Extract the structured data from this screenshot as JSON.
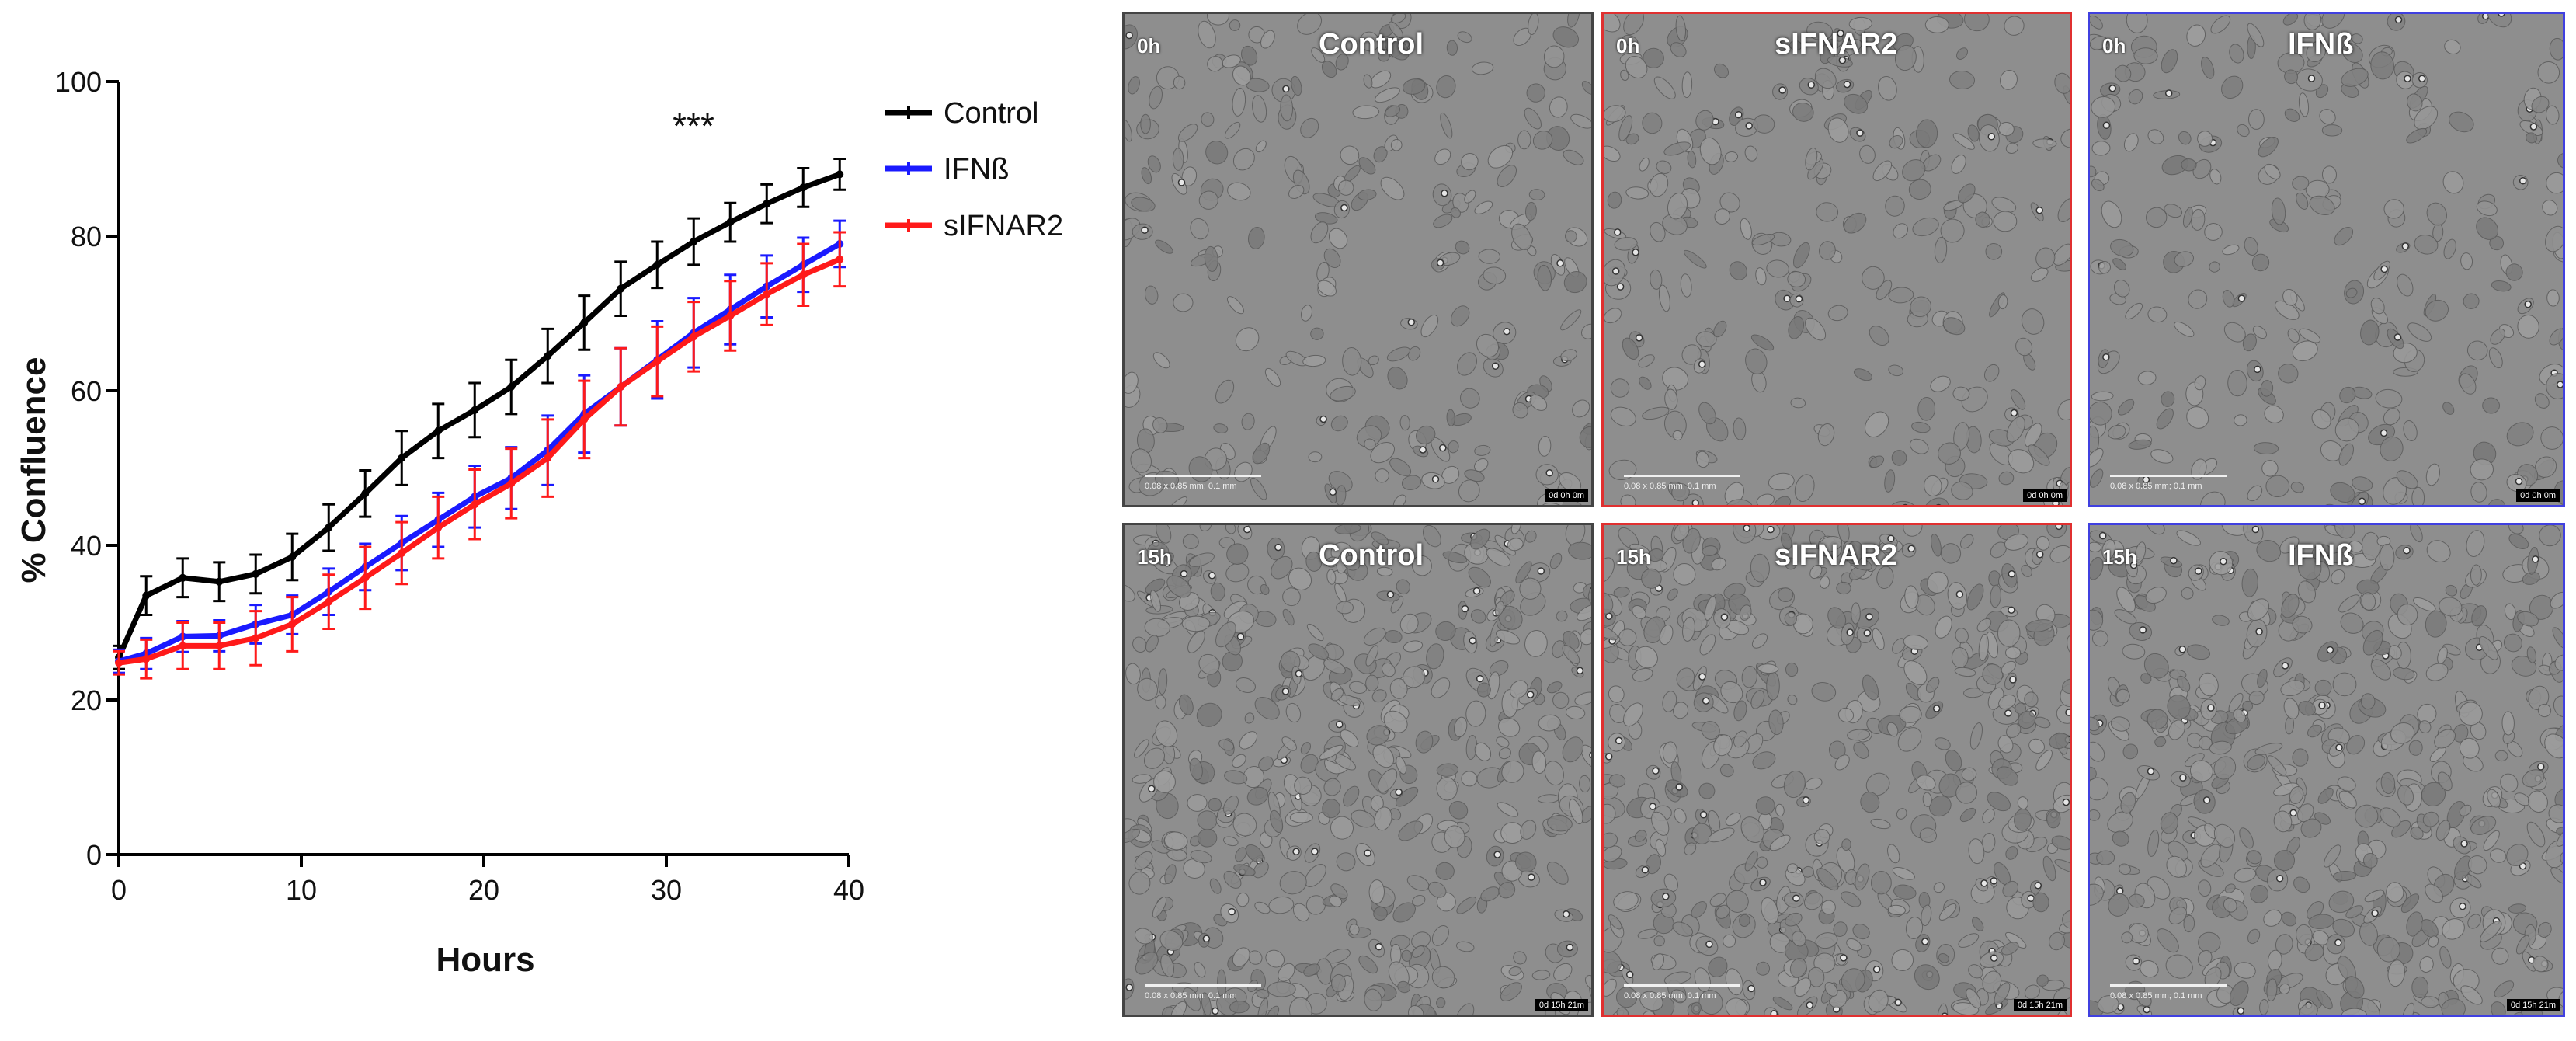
{
  "chart_data": {
    "type": "line",
    "ylabel": "% Confluence",
    "xlabel": "Hours",
    "xlim": [
      0,
      40
    ],
    "ylim": [
      0,
      100
    ],
    "xticks": [
      0,
      10,
      20,
      30,
      40
    ],
    "yticks": [
      0,
      20,
      40,
      60,
      80,
      100
    ],
    "grid": false,
    "legend_position": "top-right",
    "annotation": "***",
    "x": [
      0,
      1.5,
      3.5,
      5.5,
      7.5,
      9.5,
      11.5,
      13.5,
      15.5,
      17.5,
      19.5,
      21.5,
      23.5,
      25.5,
      27.5,
      29.5,
      31.5,
      33.5,
      35.5,
      37.5,
      39.5
    ],
    "series": [
      {
        "name": "Control",
        "color": "#000000",
        "values": [
          25.5,
          33.5,
          35.8,
          35.3,
          36.3,
          38.5,
          42.3,
          46.7,
          51.3,
          54.8,
          57.5,
          60.5,
          64.5,
          68.8,
          73.2,
          76.3,
          79.3,
          81.8,
          84.2,
          86.3,
          88.0
        ],
        "errors": [
          1.5,
          2.5,
          2.5,
          2.5,
          2.5,
          3.0,
          3.0,
          3.0,
          3.5,
          3.5,
          3.5,
          3.5,
          3.5,
          3.5,
          3.5,
          3.0,
          3.0,
          2.5,
          2.5,
          2.5,
          2.0
        ]
      },
      {
        "name": "IFNß",
        "color": "#1a1aff",
        "values": [
          25.0,
          26.0,
          28.2,
          28.3,
          29.8,
          31.0,
          34.0,
          37.2,
          40.3,
          43.3,
          46.3,
          48.7,
          52.3,
          57.0,
          60.5,
          64.0,
          67.5,
          70.5,
          73.5,
          76.3,
          79.0
        ],
        "errors": [
          1.5,
          2.0,
          2.0,
          2.0,
          2.5,
          2.5,
          3.0,
          3.0,
          3.5,
          3.5,
          4.0,
          4.0,
          4.5,
          5.0,
          5.0,
          5.0,
          4.5,
          4.5,
          4.0,
          3.5,
          3.0
        ]
      },
      {
        "name": "sIFNAR2",
        "color": "#ff1a1a",
        "values": [
          24.8,
          25.3,
          27.0,
          27.0,
          28.0,
          29.8,
          32.7,
          35.8,
          39.0,
          42.3,
          45.3,
          48.0,
          51.3,
          56.3,
          60.5,
          63.8,
          67.0,
          69.7,
          72.5,
          75.0,
          77.0
        ],
        "errors": [
          1.5,
          2.5,
          3.0,
          3.0,
          3.5,
          3.5,
          3.5,
          4.0,
          4.0,
          4.0,
          4.5,
          4.5,
          5.0,
          5.0,
          5.0,
          4.5,
          4.5,
          4.5,
          4.0,
          4.0,
          3.5
        ]
      }
    ]
  },
  "panels": [
    {
      "time": "0h",
      "condition": "Control",
      "stamp": "0d 0h 0m",
      "scale": "0.08 x 0.85 mm; 0.1 mm",
      "border": "#444444"
    },
    {
      "time": "0h",
      "condition": "sIFNAR2",
      "stamp": "0d 0h 0m",
      "scale": "0.08 x 0.85 mm; 0.1 mm",
      "border": "#e03030"
    },
    {
      "time": "0h",
      "condition": "IFNß",
      "stamp": "0d 0h 0m",
      "scale": "0.08 x 0.85 mm; 0.1 mm",
      "border": "#4040e0"
    },
    {
      "time": "15h",
      "condition": "Control",
      "stamp": "0d 15h 21m",
      "scale": "0.08 x 0.85 mm; 0.1 mm",
      "border": "#444444"
    },
    {
      "time": "15h",
      "condition": "sIFNAR2",
      "stamp": "0d 15h 21m",
      "scale": "0.08 x 0.85 mm; 0.1 mm",
      "border": "#e03030"
    },
    {
      "time": "15h",
      "condition": "IFNß",
      "stamp": "0d 15h 21m",
      "scale": "0.08 x 0.85 mm; 0.1 mm",
      "border": "#4040e0"
    }
  ]
}
